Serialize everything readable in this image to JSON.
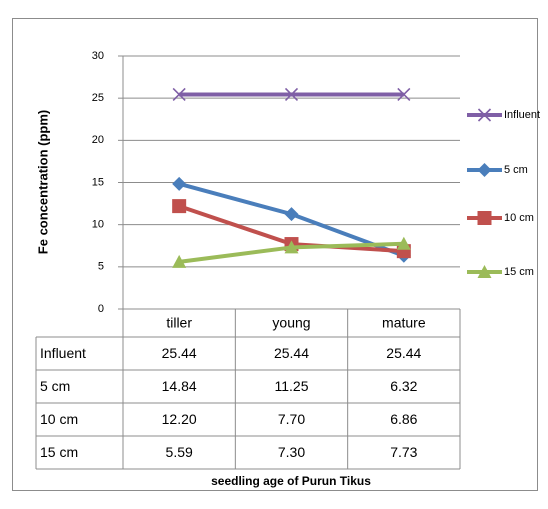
{
  "chart_data": {
    "type": "line",
    "x_label": "seedling age of  Purun Tikus",
    "y_label": "Fe concentration  (ppm)",
    "categories": [
      "tiller",
      "young",
      "mature"
    ],
    "series": [
      {
        "name": "Influent",
        "color": "#7f5fa6",
        "marker": "x",
        "values": [
          25.44,
          25.44,
          25.44
        ],
        "value_labels": [
          "25.44",
          "25.44",
          "25.44"
        ]
      },
      {
        "name": "5 cm",
        "color": "#4a7ebb",
        "marker": "diamond",
        "values": [
          14.84,
          11.25,
          6.32
        ],
        "value_labels": [
          "14.84",
          "11.25",
          "6.32"
        ]
      },
      {
        "name": "10 cm",
        "color": "#c0504d",
        "marker": "square",
        "values": [
          12.2,
          7.7,
          6.86
        ],
        "value_labels": [
          "12.20",
          "7.70",
          "6.86"
        ]
      },
      {
        "name": "15 cm",
        "color": "#9bbb59",
        "marker": "triangle",
        "values": [
          5.59,
          7.3,
          7.73
        ],
        "value_labels": [
          "5.59",
          "7.30",
          "7.73"
        ]
      }
    ],
    "ylim": [
      0,
      30
    ],
    "yticks": [
      0,
      5,
      10,
      15,
      20,
      25,
      30
    ],
    "grid": true,
    "legend": "right"
  }
}
